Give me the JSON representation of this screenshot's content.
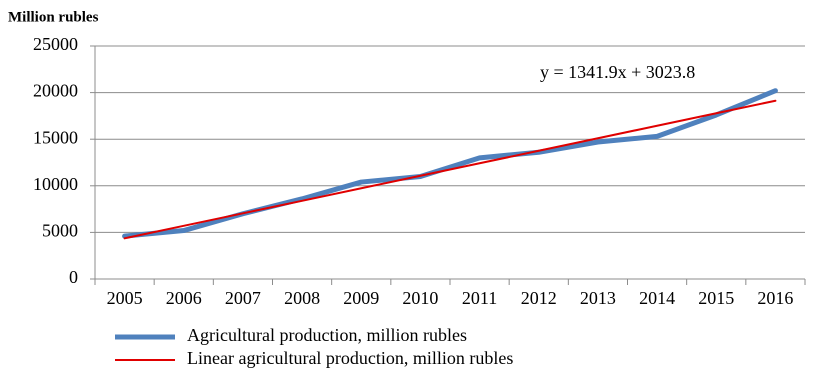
{
  "chart_data": {
    "type": "line",
    "y_axis_label": "Million rubles",
    "annotation": "y = 1341.9x + 3023.8",
    "categories": [
      "2005",
      "2006",
      "2007",
      "2008",
      "2009",
      "2010",
      "2011",
      "2012",
      "2013",
      "2014",
      "2015",
      "2016"
    ],
    "series": [
      {
        "name": "Agricultural production, million rubles",
        "color": "#4f81bd",
        "values": [
          4600,
          5200,
          7000,
          8600,
          10400,
          11000,
          13000,
          13600,
          14700,
          15300,
          17600,
          20200
        ]
      },
      {
        "name": "Linear agricultural production, million rubles",
        "color": "#e00000",
        "values": [
          4366,
          5708,
          7050,
          8391,
          9733,
          11075,
          12417,
          13759,
          15101,
          16443,
          17785,
          19127
        ]
      }
    ],
    "ylim": [
      0,
      25000
    ],
    "yticks": [
      0,
      5000,
      10000,
      15000,
      20000,
      25000
    ],
    "grid": true
  }
}
